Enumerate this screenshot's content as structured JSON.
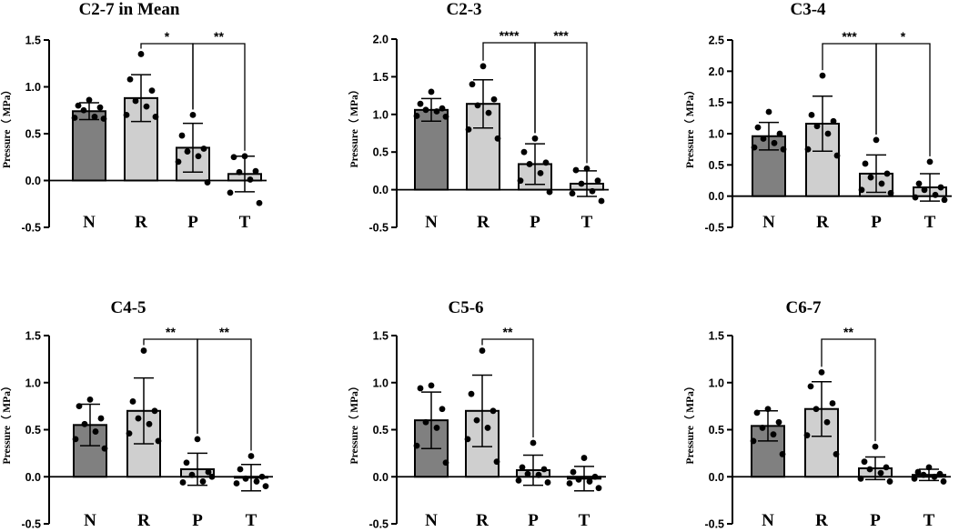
{
  "chart_data": [
    {
      "type": "bar",
      "title": "C2-7 in Mean",
      "ylabel": "Pressure（ MPa）",
      "xlabel": "",
      "categories": [
        "N",
        "R",
        "P",
        "T"
      ],
      "ylim": [
        -0.5,
        1.5
      ],
      "yticks": [
        "-0.5",
        "0.0",
        "0.5",
        "1.0",
        "1.5"
      ],
      "means": [
        0.74,
        0.88,
        0.35,
        0.07
      ],
      "sd": [
        0.09,
        0.25,
        0.26,
        0.19
      ],
      "points": [
        [
          0.86,
          0.8,
          0.78,
          0.75,
          0.68,
          0.67,
          0.66
        ],
        [
          1.35,
          1.08,
          0.96,
          0.85,
          0.79,
          0.7,
          0.68
        ],
        [
          0.7,
          0.48,
          0.34,
          0.31,
          0.26,
          0.2,
          -0.02
        ],
        [
          0.26,
          0.25,
          0.1,
          0.09,
          0.01,
          -0.13,
          -0.24
        ]
      ],
      "brackets": [
        {
          "from": "R",
          "to": "P",
          "label": "*"
        },
        {
          "from": "P",
          "to": "T",
          "label": "**"
        }
      ]
    },
    {
      "type": "bar",
      "title": "C2-3",
      "ylabel": "Pressure（ MPa）",
      "xlabel": "",
      "categories": [
        "N",
        "R",
        "P",
        "T"
      ],
      "ylim": [
        -0.5,
        2.0
      ],
      "yticks": [
        "-0.5",
        "0.0",
        "0.5",
        "1.0",
        "1.5",
        "2.0"
      ],
      "means": [
        1.06,
        1.14,
        0.34,
        0.08
      ],
      "sd": [
        0.15,
        0.32,
        0.27,
        0.17
      ],
      "points": [
        [
          1.3,
          1.14,
          1.08,
          1.06,
          1.04,
          0.98,
          0.97
        ],
        [
          1.64,
          1.4,
          1.2,
          1.12,
          1.02,
          0.8,
          0.68
        ],
        [
          0.68,
          0.5,
          0.36,
          0.34,
          0.22,
          0.12,
          -0.03
        ],
        [
          0.28,
          0.26,
          0.12,
          0.08,
          -0.02,
          -0.05,
          -0.15
        ]
      ],
      "brackets": [
        {
          "from": "R",
          "to": "P",
          "label": "****"
        },
        {
          "from": "P",
          "to": "T",
          "label": "***"
        }
      ]
    },
    {
      "type": "bar",
      "title": "C3-4",
      "ylabel": "Pressure（ MPa）",
      "xlabel": "",
      "categories": [
        "N",
        "R",
        "P",
        "T"
      ],
      "ylim": [
        -0.5,
        2.5
      ],
      "yticks": [
        "-0.5",
        "0.0",
        "0.5",
        "1.0",
        "1.5",
        "2.0",
        "2.5"
      ],
      "means": [
        0.96,
        1.16,
        0.36,
        0.14
      ],
      "sd": [
        0.22,
        0.44,
        0.3,
        0.22
      ],
      "points": [
        [
          1.35,
          1.1,
          1.0,
          0.92,
          0.85,
          0.78,
          0.75
        ],
        [
          1.93,
          1.3,
          1.2,
          1.12,
          1.0,
          0.75,
          0.65
        ],
        [
          0.9,
          0.52,
          0.36,
          0.3,
          0.2,
          0.1,
          0.05
        ],
        [
          0.55,
          0.2,
          0.14,
          0.1,
          0.02,
          -0.02,
          -0.06
        ]
      ],
      "brackets": [
        {
          "from": "R",
          "to": "P",
          "label": "***"
        },
        {
          "from": "P",
          "to": "T",
          "label": "*"
        }
      ]
    },
    {
      "type": "bar",
      "title": "C4-5",
      "ylabel": "Pressure（ MPa）",
      "xlabel": "",
      "categories": [
        "N",
        "R",
        "P",
        "T"
      ],
      "ylim": [
        -0.5,
        1.5
      ],
      "yticks": [
        "-0.5",
        "0.0",
        "0.5",
        "1.0",
        "1.5"
      ],
      "means": [
        0.55,
        0.7,
        0.08,
        -0.01
      ],
      "sd": [
        0.22,
        0.35,
        0.17,
        0.14
      ],
      "points": [
        [
          0.82,
          0.75,
          0.62,
          0.56,
          0.48,
          0.4,
          0.3
        ],
        [
          1.34,
          0.8,
          0.7,
          0.62,
          0.56,
          0.46,
          0.38
        ],
        [
          0.4,
          0.15,
          0.05,
          0.02,
          -0.05,
          -0.06,
          0.0
        ],
        [
          0.22,
          0.08,
          0.0,
          -0.02,
          -0.05,
          -0.07,
          -0.1
        ]
      ],
      "brackets": [
        {
          "from": "R",
          "to": "P",
          "label": "**"
        },
        {
          "from": "P",
          "to": "T",
          "label": "**"
        }
      ]
    },
    {
      "type": "bar",
      "title": "C5-6",
      "ylabel": "Pressure（ MPa）",
      "xlabel": "",
      "categories": [
        "N",
        "R",
        "P",
        "T"
      ],
      "ylim": [
        -0.5,
        1.5
      ],
      "yticks": [
        "-0.5",
        "0.0",
        "0.5",
        "1.0",
        "1.5"
      ],
      "means": [
        0.6,
        0.7,
        0.07,
        -0.02
      ],
      "sd": [
        0.3,
        0.38,
        0.16,
        0.13
      ],
      "points": [
        [
          0.97,
          0.94,
          0.72,
          0.58,
          0.52,
          0.33,
          0.15
        ],
        [
          1.34,
          0.88,
          0.7,
          0.6,
          0.52,
          0.4,
          0.16
        ],
        [
          0.36,
          0.1,
          0.08,
          0.03,
          0.02,
          -0.04,
          -0.06
        ],
        [
          0.2,
          0.05,
          0.0,
          -0.03,
          -0.05,
          -0.07,
          -0.12
        ]
      ],
      "brackets": [
        {
          "from": "R",
          "to": "P",
          "label": "**"
        }
      ]
    },
    {
      "type": "bar",
      "title": "C6-7",
      "ylabel": "Pressure（ MPa）",
      "xlabel": "",
      "categories": [
        "N",
        "R",
        "P",
        "T"
      ],
      "ylim": [
        -0.5,
        1.5
      ],
      "yticks": [
        "-0.5",
        "0.0",
        "0.5",
        "1.0",
        "1.5"
      ],
      "means": [
        0.54,
        0.72,
        0.09,
        0.02
      ],
      "sd": [
        0.16,
        0.29,
        0.12,
        0.06
      ],
      "points": [
        [
          0.72,
          0.68,
          0.58,
          0.52,
          0.45,
          0.38,
          0.24
        ],
        [
          1.11,
          0.96,
          0.78,
          0.72,
          0.58,
          0.44,
          0.24
        ],
        [
          0.32,
          0.16,
          0.1,
          0.08,
          0.04,
          -0.02,
          -0.05
        ],
        [
          0.1,
          0.05,
          0.03,
          0.02,
          0.0,
          -0.02,
          -0.05
        ]
      ],
      "brackets": [
        {
          "from": "R",
          "to": "P",
          "label": "**"
        }
      ]
    }
  ],
  "style": {
    "bar_colors": [
      "#808080",
      "#cfcfcf",
      "#cfcfcf",
      "#d4d4d4"
    ],
    "point_color": "#000000",
    "axis_color": "#000000"
  }
}
